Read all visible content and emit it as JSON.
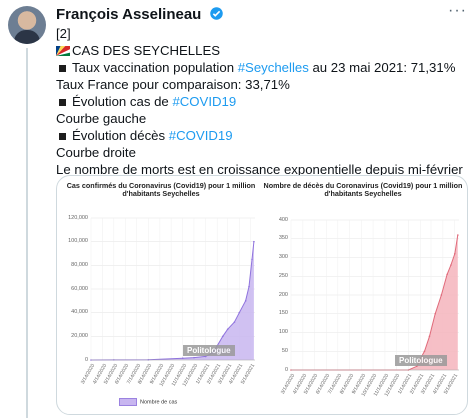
{
  "author": {
    "name": "François Asselineau",
    "verified": true
  },
  "tweet": {
    "l1": "[2]",
    "l2": "CAS DES SEYCHELLES",
    "l3a": "Taux vaccination population ",
    "l3b": "#Seychelles",
    "l3c": " au 23 mai 2021: 71,31%",
    "l4": "Taux France pour comparaison: 33,71%",
    "l5a": "Évolution cas de ",
    "l5b": "#COVID19",
    "l6": "Courbe gauche",
    "l7a": "Évolution décès ",
    "l7b": "#COVID19",
    "l8": "Courbe droite",
    "l9": "Le nombre de morts est en croissance exponentielle depuis mi-février"
  },
  "colors": {
    "link": "#1d9bf0",
    "cases_fill": "#c8b6f0",
    "cases_line": "#8f73dd",
    "deaths_fill": "#f4b4bc",
    "deaths_line": "#e06a7a"
  },
  "watermark": "Politologue",
  "chart_data": [
    {
      "type": "area",
      "title": "Cas confirmés du Coronavirus (Covid19) pour 1 million d'habitants Seychelles",
      "legend": "Nombre de cas",
      "x_ticks": [
        "3/14/2020",
        "4/14/2020",
        "5/14/2020",
        "6/14/2020",
        "7/14/2020",
        "8/14/2020",
        "9/14/2020",
        "10/14/2020",
        "11/14/2020",
        "12/14/2020",
        "1/14/2021",
        "2/14/2021",
        "3/14/2021",
        "4/14/2021",
        "5/14/2021"
      ],
      "y_ticks": [
        0,
        20000,
        40000,
        60000,
        80000,
        100000,
        120000
      ],
      "ylim": [
        0,
        120000
      ],
      "x": [
        "3/14/2020",
        "5/14/2020",
        "8/14/2020",
        "11/14/2020",
        "12/14/2020",
        "1/14/2021",
        "2/1/2021",
        "2/14/2021",
        "3/1/2021",
        "3/14/2021",
        "4/1/2021",
        "4/14/2021",
        "5/1/2021",
        "5/10/2021",
        "5/18/2021",
        "5/23/2021"
      ],
      "values": [
        0,
        100,
        150,
        1500,
        2000,
        3000,
        6000,
        12000,
        20000,
        26000,
        32000,
        40000,
        50000,
        62000,
        85000,
        100000
      ]
    },
    {
      "type": "area",
      "title": "Nombre de décès du Coronavirus (Covid19) pour 1 million d'habitants Seychelles",
      "x_ticks": [
        "3/14/2020",
        "4/14/2020",
        "5/14/2020",
        "6/14/2020",
        "7/14/2020",
        "8/14/2020",
        "9/14/2020",
        "10/14/2020",
        "11/14/2020",
        "12/14/2020",
        "1/14/2021",
        "2/14/2021",
        "3/14/2021",
        "4/14/2021",
        "5/14/2021"
      ],
      "y_ticks": [
        0,
        50,
        100,
        150,
        200,
        250,
        300,
        350,
        400
      ],
      "ylim": [
        0,
        400
      ],
      "x": [
        "3/14/2020",
        "1/14/2021",
        "2/5/2021",
        "2/14/2021",
        "2/25/2021",
        "3/10/2021",
        "3/25/2021",
        "4/10/2021",
        "4/25/2021",
        "5/5/2021",
        "5/15/2021",
        "5/23/2021"
      ],
      "values": [
        0,
        0,
        10,
        30,
        50,
        90,
        150,
        200,
        255,
        280,
        310,
        360
      ]
    }
  ]
}
